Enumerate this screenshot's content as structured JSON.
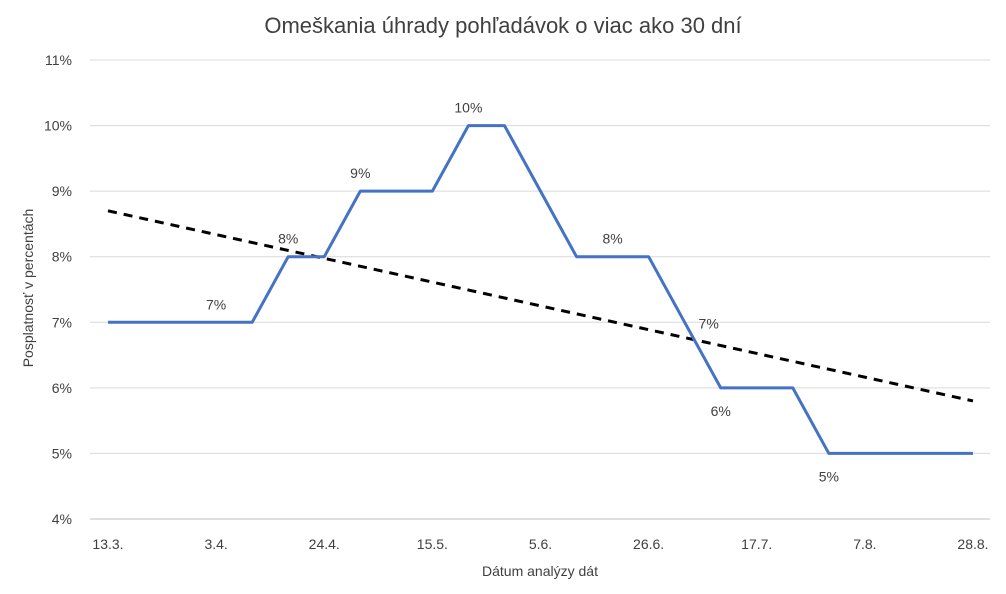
{
  "chart_data": {
    "type": "line",
    "title": "Omeškania úhrady pohľadávok o viac ako 30 dní",
    "xlabel": "Dátum analýzy dát",
    "ylabel": "Posplatnosť v percentách",
    "x_tick_labels": [
      "13.3.",
      "3.4.",
      "24.4.",
      "15.5.",
      "5.6.",
      "26.6.",
      "17.7.",
      "7.8.",
      "28.8."
    ],
    "y_tick_labels": [
      "4%",
      "5%",
      "6%",
      "7%",
      "8%",
      "9%",
      "10%",
      "11%"
    ],
    "ylim": [
      4,
      11
    ],
    "grid": "horizontal",
    "legend": "none",
    "series": [
      {
        "color": "#4472C4",
        "x": [
          "13.3.",
          "20.3.",
          "27.3.",
          "3.4.",
          "10.4.",
          "17.4.",
          "24.4.",
          "1.5.",
          "8.5.",
          "15.5.",
          "22.5.",
          "29.5.",
          "5.6.",
          "12.6.",
          "19.6.",
          "26.6.",
          "3.7.",
          "10.7.",
          "17.7.",
          "24.7.",
          "31.7.",
          "7.8.",
          "14.8.",
          "21.8.",
          "28.8."
        ],
        "values": [
          7,
          7,
          7,
          7,
          7,
          8,
          8,
          9,
          9,
          9,
          10,
          10,
          9,
          8,
          8,
          8,
          7,
          6,
          6,
          6,
          5,
          5,
          5,
          5,
          5
        ]
      }
    ],
    "trendline": {
      "type": "linear",
      "color": "#000000",
      "style": "dashed",
      "start": 8.7,
      "end": 5.8
    },
    "data_labels": [
      {
        "x": "3.4.",
        "text": "7%"
      },
      {
        "x": "17.4.",
        "text": "8%"
      },
      {
        "x": "1.5.",
        "text": "9%"
      },
      {
        "x": "22.5.",
        "text": "10%"
      },
      {
        "x": "19.6.",
        "text": "8%"
      },
      {
        "x": "3.7.",
        "text": "7%"
      },
      {
        "x": "10.7.",
        "text": "6%"
      },
      {
        "x": "31.7.",
        "text": "5%"
      }
    ]
  }
}
